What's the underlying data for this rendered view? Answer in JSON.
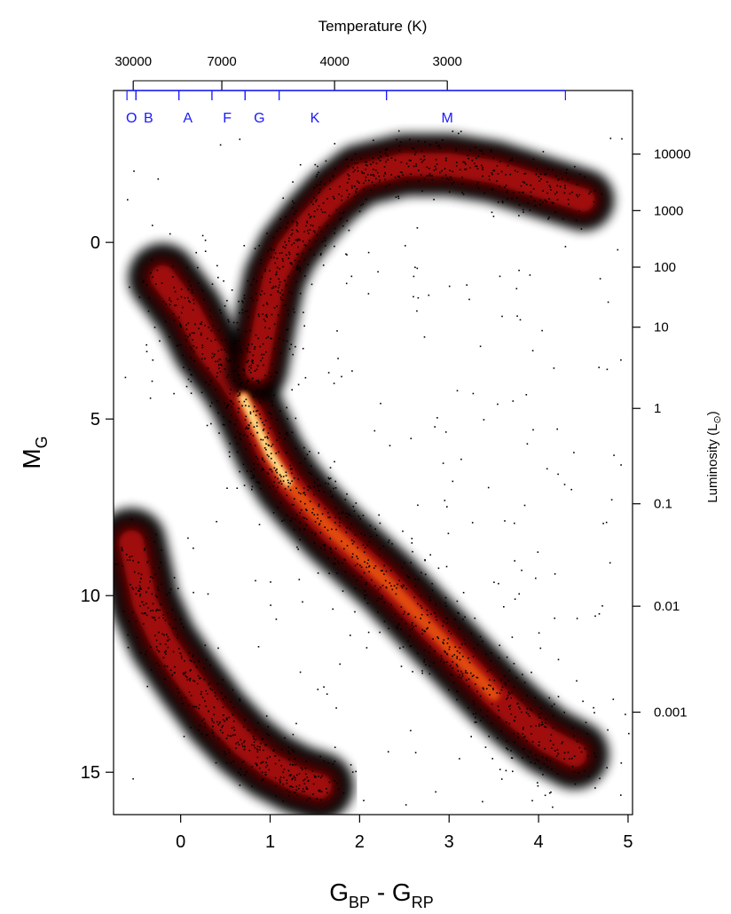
{
  "chart_data": {
    "type": "scatter",
    "title": "",
    "xlabel": "G",
    "xlabel_sub1": "BP",
    "xlabel_mid": " - G",
    "xlabel_sub2": "RP",
    "ylabel": "M",
    "ylabel_sub": "G",
    "top_axis_title": "Temperature (K)",
    "right_axis_title": "Luminosity (L",
    "right_axis_sub": "⊙",
    "right_axis_close": ")",
    "xlim": [
      -0.75,
      5.05
    ],
    "ylim": [
      16.2,
      -4.3
    ],
    "x_ticks": [
      0,
      1,
      2,
      3,
      4,
      5
    ],
    "y_ticks": [
      0,
      5,
      10,
      15
    ],
    "temperature_ticks": [
      {
        "label": "30000",
        "color": -0.53
      },
      {
        "label": "7000",
        "color": 0.46
      },
      {
        "label": "4000",
        "color": 1.72
      },
      {
        "label": "3000",
        "color": 2.98
      }
    ],
    "luminosity_ticks": [
      {
        "label": "10000",
        "mag": -2.5
      },
      {
        "label": "1000",
        "mag": -0.9
      },
      {
        "label": "100",
        "mag": 0.7
      },
      {
        "label": "10",
        "mag": 2.4
      },
      {
        "label": "1",
        "mag": 4.7
      },
      {
        "label": "0.1",
        "mag": 7.4
      },
      {
        "label": "0.01",
        "mag": 10.3
      },
      {
        "label": "0.001",
        "mag": 13.3
      }
    ],
    "spectral_classes": [
      {
        "label": "O",
        "color": -0.55,
        "start": -0.6,
        "end": -0.5
      },
      {
        "label": "B",
        "color": -0.36,
        "start": -0.5,
        "end": -0.02
      },
      {
        "label": "A",
        "color": 0.08,
        "start": -0.02,
        "end": 0.35
      },
      {
        "label": "F",
        "color": 0.52,
        "start": 0.35,
        "end": 0.72
      },
      {
        "label": "G",
        "color": 0.88,
        "start": 0.72,
        "end": 1.1
      },
      {
        "label": "K",
        "color": 1.5,
        "start": 1.1,
        "end": 2.3
      },
      {
        "label": "M",
        "color": 2.98,
        "start": 2.3,
        "end": 4.3
      }
    ],
    "series": [
      {
        "name": "",
        "points": [
          [
            -0.2,
            1.0
          ],
          [
            0.1,
            2.0
          ],
          [
            0.3,
            3.0
          ],
          [
            0.55,
            3.8
          ],
          [
            0.7,
            4.4
          ],
          [
            0.85,
            5.2
          ],
          [
            1.0,
            6.0
          ],
          [
            1.2,
            6.8
          ],
          [
            1.4,
            7.4
          ],
          [
            1.7,
            8.2
          ],
          [
            2.0,
            8.9
          ],
          [
            2.3,
            9.6
          ],
          [
            2.6,
            10.4
          ],
          [
            2.9,
            11.2
          ],
          [
            3.2,
            12.0
          ],
          [
            3.5,
            12.8
          ],
          [
            3.8,
            13.5
          ],
          [
            4.1,
            14.1
          ],
          [
            4.4,
            14.5
          ]
        ]
      },
      {
        "name": "",
        "points": [
          [
            0.85,
            3.6
          ],
          [
            0.95,
            2.2
          ],
          [
            1.05,
            1.0
          ],
          [
            1.2,
            0.2
          ],
          [
            1.45,
            -0.6
          ],
          [
            1.7,
            -1.3
          ],
          [
            2.0,
            -1.9
          ],
          [
            2.5,
            -2.2
          ],
          [
            3.0,
            -2.2
          ],
          [
            3.5,
            -2.0
          ],
          [
            4.0,
            -1.6
          ],
          [
            4.5,
            -1.2
          ]
        ]
      },
      {
        "name": "",
        "points": [
          [
            -0.55,
            8.5
          ],
          [
            -0.4,
            10.2
          ],
          [
            -0.2,
            11.3
          ],
          [
            0.1,
            12.4
          ],
          [
            0.4,
            13.4
          ],
          [
            0.7,
            14.2
          ],
          [
            1.0,
            14.8
          ],
          [
            1.3,
            15.2
          ],
          [
            1.55,
            15.4
          ]
        ]
      }
    ]
  }
}
